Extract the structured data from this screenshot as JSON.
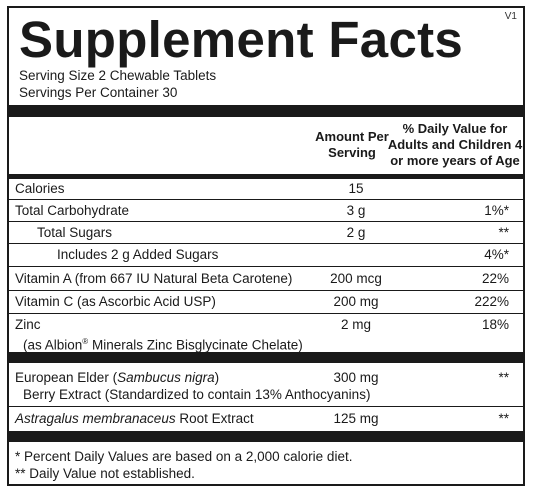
{
  "version": "V1",
  "title": "Supplement Facts",
  "serving_size": "Serving Size 2 Chewable Tablets",
  "servings_per_container": "Servings Per Container 30",
  "headers": {
    "amount_line1": "Amount Per",
    "amount_line2": "Serving",
    "dv_line1": "% Daily Value for",
    "dv_line2": "Adults and Children 4",
    "dv_line3": "or more years of Age"
  },
  "rows": [
    {
      "name": "Calories",
      "amount": "15",
      "dv": ""
    },
    {
      "name": "Total Carbohydrate",
      "amount": "3 g",
      "dv": "1%*"
    },
    {
      "name": "Total Sugars",
      "amount": "2 g",
      "dv": "**"
    },
    {
      "name": "Includes 2 g Added Sugars",
      "amount": "",
      "dv": "4%*"
    },
    {
      "name": "Vitamin A (from 667 IU Natural Beta Carotene)",
      "amount": "200 mcg",
      "dv": "22%"
    },
    {
      "name": "Vitamin C (as Ascorbic Acid USP)",
      "amount": "200 mg",
      "dv": "222%"
    },
    {
      "name": "Zinc",
      "sub_pre": "(as Albion",
      "sub_reg": "®",
      "sub_post": " Minerals Zinc Bisglycinate Chelate)",
      "amount": "2 mg",
      "dv": "18%"
    }
  ],
  "botanicals": [
    {
      "name_pre": "European Elder (",
      "name_italic": "Sambucus nigra",
      "name_post": ")",
      "sub": "Berry Extract (Standardized to contain 13% Anthocyanins)",
      "amount": "300 mg",
      "dv": "**"
    },
    {
      "name_italic": "Astragalus membranaceus",
      "name_post": " Root Extract",
      "amount": "125 mg",
      "dv": "**"
    }
  ],
  "footnotes": [
    "* Percent Daily Values are based on a 2,000 calorie diet.",
    "** Daily Value not established."
  ]
}
